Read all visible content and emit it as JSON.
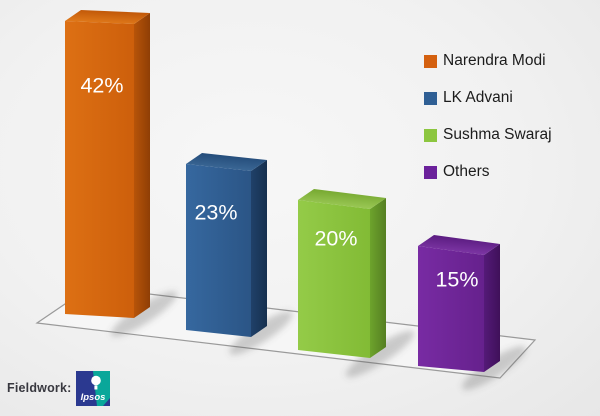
{
  "chart_data": {
    "type": "bar",
    "style": "3d-column",
    "title": "",
    "categories": [
      "Narendra Modi",
      "LK Advani",
      "Sushma Swaraj",
      "Others"
    ],
    "values": [
      42,
      23,
      20,
      15
    ],
    "value_labels": [
      "42%",
      "23%",
      "20%",
      "15%"
    ],
    "value_label_color": "#ffffff",
    "legend_position": "right",
    "axes_visible": false,
    "gridlines": false,
    "floor_outline_color": "#9a9a9a",
    "colors": [
      {
        "legend": "#d4600f",
        "front": [
          "#dd7014",
          "#cd5f0b"
        ],
        "top": [
          "#e8821f",
          "#c05708"
        ],
        "side": [
          "#b75409",
          "#8f3e05"
        ]
      },
      {
        "legend": "#2f5f94",
        "front": [
          "#36689f",
          "#2b5586"
        ],
        "top": [
          "#43719f",
          "#224a78"
        ],
        "side": [
          "#204169",
          "#16304f"
        ]
      },
      {
        "legend": "#8cc63f",
        "front": [
          "#94cb48",
          "#82bb35"
        ],
        "top": [
          "#a8d463",
          "#74a62e"
        ],
        "side": [
          "#6da32c",
          "#557f22"
        ]
      },
      {
        "legend": "#6b219b",
        "front": [
          "#782ba3",
          "#66218d"
        ],
        "top": [
          "#8a3fb2",
          "#581a7e"
        ],
        "side": [
          "#541a78",
          "#3f1059"
        ]
      }
    ]
  },
  "footer": {
    "fieldwork_label": "Fieldwork:",
    "logo_text": "Ipsos",
    "logo_navy": "#2b3990",
    "logo_teal": "#0aa79a"
  }
}
